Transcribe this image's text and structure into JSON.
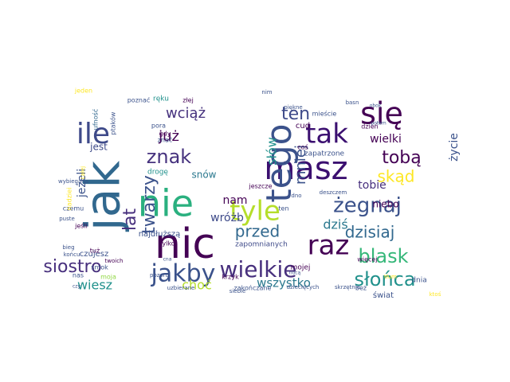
{
  "palette": {
    "dark_purple": "#440154",
    "indigo": "#3b528b",
    "blue": "#31688e",
    "teal": "#21918c",
    "green": "#35b779",
    "lime": "#90d743",
    "yellow": "#fde725"
  },
  "words": [
    {
      "text": "jak",
      "color": "#31688e",
      "rotated": true
    },
    {
      "text": "nie",
      "color": "#2ab07f",
      "rotated": false
    },
    {
      "text": "nic",
      "color": "#440154",
      "rotated": false
    },
    {
      "text": "ile",
      "color": "#3e4a89",
      "rotated": false
    },
    {
      "text": "masz",
      "color": "#3b0f70",
      "rotated": false
    },
    {
      "text": "tego",
      "color": "#3b528b",
      "rotated": true
    },
    {
      "text": "tyle",
      "color": "#b5de2b",
      "rotated": false
    },
    {
      "text": "się",
      "color": "#440154",
      "rotated": false
    },
    {
      "text": "tak",
      "color": "#3b0f70",
      "rotated": false
    },
    {
      "text": "jakby",
      "color": "#3b528b",
      "rotated": false
    },
    {
      "text": "wielkie",
      "color": "#472f7d",
      "rotated": false
    },
    {
      "text": "raz",
      "color": "#440154",
      "rotated": false
    },
    {
      "text": "siostro",
      "color": "#472f7d",
      "rotated": false
    },
    {
      "text": "blask",
      "color": "#35b779",
      "rotated": false
    },
    {
      "text": "słońca",
      "color": "#21918c",
      "rotated": false
    },
    {
      "text": "żegnaj",
      "color": "#3b528b",
      "rotated": false
    },
    {
      "text": "znak",
      "color": "#46327e",
      "rotated": false
    },
    {
      "text": "ten",
      "color": "#3e4a89",
      "rotated": false
    },
    {
      "text": "wciąż",
      "color": "#46327e",
      "rotated": false
    },
    {
      "text": "twarzy",
      "color": "#3b528b",
      "rotated": true
    },
    {
      "text": "lat",
      "color": "#472f7d",
      "rotated": true
    },
    {
      "text": "przed",
      "color": "#31688e",
      "rotated": false
    },
    {
      "text": "dzisiaj",
      "color": "#31688e",
      "rotated": false
    },
    {
      "text": "tobą",
      "color": "#440154",
      "rotated": false
    },
    {
      "text": "skąd",
      "color": "#fde725",
      "rotated": false
    },
    {
      "text": "mniej",
      "color": "#3b528b",
      "rotated": true
    },
    {
      "text": "już",
      "color": "#440154",
      "rotated": false
    },
    {
      "text": "słów",
      "color": "#21918c",
      "rotated": true
    },
    {
      "text": "jeżeli",
      "color": "#3b528b",
      "rotated": true
    },
    {
      "text": "wiesz",
      "color": "#21918c",
      "rotated": false
    },
    {
      "text": "choć",
      "color": "#b5de2b",
      "rotated": false
    },
    {
      "text": "nam",
      "color": "#440154",
      "rotated": false
    },
    {
      "text": "wróżb",
      "color": "#3e4a89",
      "rotated": false
    },
    {
      "text": "dziś",
      "color": "#2a788e",
      "rotated": false
    },
    {
      "text": "wszystko",
      "color": "#2a788e",
      "rotated": false
    },
    {
      "text": "życie",
      "color": "#3b528b",
      "rotated": true
    },
    {
      "text": "wielki",
      "color": "#440154",
      "rotated": false
    },
    {
      "text": "tobie",
      "color": "#472f7d",
      "rotated": false
    },
    {
      "text": "snów",
      "color": "#2a788e",
      "rotated": false
    },
    {
      "text": "jest",
      "color": "#3e4a89",
      "rotated": false
    },
    {
      "text": "niebo",
      "color": "#440154",
      "rotated": false
    },
    {
      "text": "świat",
      "color": "#3b528b",
      "rotated": false
    },
    {
      "text": "najdłuższą",
      "color": "#3b528b",
      "rotated": false
    },
    {
      "text": "zapomnianych",
      "color": "#3e4a89",
      "rotated": false
    },
    {
      "text": "zapatrzone",
      "color": "#3b528b",
      "rotated": false
    },
    {
      "text": "drogę",
      "color": "#21918c",
      "rotated": false
    },
    {
      "text": "jeszcze",
      "color": "#440154",
      "rotated": false
    },
    {
      "text": "cud",
      "color": "#440154",
      "rotated": false
    },
    {
      "text": "mieście",
      "color": "#3b528b",
      "rotated": false
    },
    {
      "text": "dzień",
      "color": "#440154",
      "rotated": false
    },
    {
      "text": "dnia",
      "color": "#3b528b",
      "rotated": false
    },
    {
      "text": "beż",
      "color": "#3b528b",
      "rotated": false
    },
    {
      "text": "czujesz",
      "color": "#3b528b",
      "rotated": false
    },
    {
      "text": "smok",
      "color": "#3b528b",
      "rotated": false
    },
    {
      "text": "tylko",
      "color": "#440154",
      "rotated": false
    },
    {
      "text": "krzyk",
      "color": "#440154",
      "rotated": false
    },
    {
      "text": "mojej",
      "color": "#440154",
      "rotated": false
    },
    {
      "text": "coś",
      "color": "#440154",
      "rotated": false
    },
    {
      "text": "ten",
      "color": "#3b528b",
      "rotated": false
    },
    {
      "text": "pora",
      "color": "#3b528b",
      "rotated": false
    },
    {
      "text": "gdy",
      "color": "#440154",
      "rotated": false
    },
    {
      "text": "znać",
      "color": "#3b528b",
      "rotated": false
    },
    {
      "text": "złej",
      "color": "#440154",
      "rotated": false
    },
    {
      "text": "ręku",
      "color": "#21918c",
      "rotated": false
    },
    {
      "text": "poznać",
      "color": "#3b528b",
      "rotated": false
    },
    {
      "text": "ptaków",
      "color": "#3b528b",
      "rotated": true
    },
    {
      "text": "ufność",
      "color": "#31688e",
      "rotated": true
    },
    {
      "text": "jeden",
      "color": "#fde725",
      "rotated": false
    },
    {
      "text": "czemu",
      "color": "#3b528b",
      "rotated": false
    },
    {
      "text": "jeśli",
      "color": "#440154",
      "rotated": false
    },
    {
      "text": "tuż",
      "color": "#440154",
      "rotated": false
    },
    {
      "text": "nas",
      "color": "#3b528b",
      "rotated": false
    },
    {
      "text": "moja",
      "color": "#90d743",
      "rotated": false
    },
    {
      "text": "nadziei",
      "color": "#fde725",
      "rotated": true
    },
    {
      "text": "wybiegana",
      "color": "#3b528b",
      "rotated": false
    },
    {
      "text": "puste",
      "color": "#3b528b",
      "rotated": false
    },
    {
      "text": "bieg",
      "color": "#3b528b",
      "rotated": false
    },
    {
      "text": "końcu",
      "color": "#3b528b",
      "rotated": false
    },
    {
      "text": "twoich",
      "color": "#440154",
      "rotated": false
    },
    {
      "text": "pozoru",
      "color": "#3b528b",
      "rotated": false
    },
    {
      "text": "uzbierane",
      "color": "#3b528b",
      "rotated": false
    },
    {
      "text": "siebie",
      "color": "#3b528b",
      "rotated": false
    },
    {
      "text": "dziecięcych",
      "color": "#3b528b",
      "rotated": false
    },
    {
      "text": "skrzętnie",
      "color": "#3b528b",
      "rotated": false
    },
    {
      "text": "zakończane",
      "color": "#3b528b",
      "rotated": false
    },
    {
      "text": "ktoś",
      "color": "#fde725",
      "rotated": false
    },
    {
      "text": "nim",
      "color": "#3b528b",
      "rotated": false
    },
    {
      "text": "piękne",
      "color": "#3b528b",
      "rotated": false
    },
    {
      "text": "basn",
      "color": "#3b528b",
      "rotated": false
    },
    {
      "text": "obok",
      "color": "#3b528b",
      "rotated": false
    },
    {
      "text": "potem",
      "color": "#3b528b",
      "rotated": false
    },
    {
      "text": "dno",
      "color": "#3b528b",
      "rotated": false
    },
    {
      "text": "deszczem",
      "color": "#3b528b",
      "rotated": false
    },
    {
      "text": "więcej",
      "color": "#440154",
      "rotated": false
    },
    {
      "text": "tłum",
      "color": "#fde725",
      "rotated": false
    },
    {
      "text": "nocą",
      "color": "#3b528b",
      "rotated": false
    },
    {
      "text": "czy",
      "color": "#3b528b",
      "rotated": false
    },
    {
      "text": "cna",
      "color": "#3b528b",
      "rotated": false
    },
    {
      "text": "całej",
      "color": "#fde725",
      "rotated": true
    }
  ]
}
